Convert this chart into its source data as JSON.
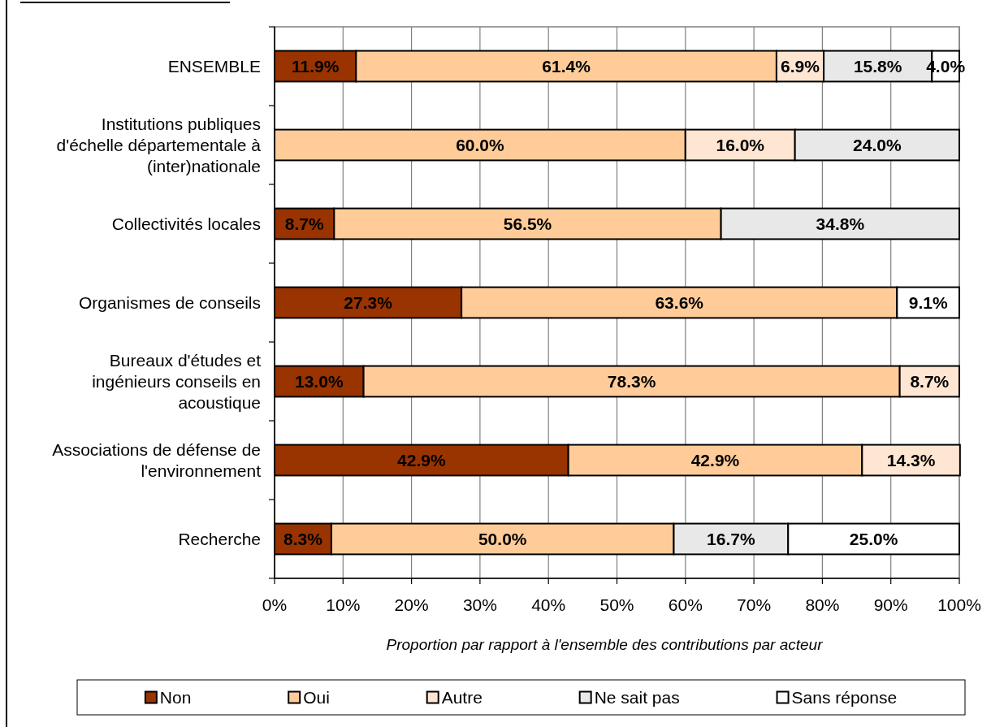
{
  "chart_data": {
    "type": "bar",
    "orientation": "horizontal",
    "stacked": true,
    "categories": [
      "ENSEMBLE",
      "Institutions publiques d'échelle départementale à (inter)nationale",
      "Collectivités locales",
      "Organismes de conseils",
      "Bureaux d'études et ingénieurs conseils en acoustique",
      "Associations de défense de l'environnement",
      "Recherche"
    ],
    "series": [
      {
        "name": "Non",
        "color": "#993300",
        "values": [
          11.9,
          null,
          8.7,
          27.3,
          13.0,
          42.9,
          8.3
        ],
        "value_labels": [
          "11.9%",
          null,
          "8.7%",
          "27.3%",
          "13.0%",
          "42.9%",
          "8.3%"
        ]
      },
      {
        "name": "Oui",
        "color": "#ffcc99",
        "values": [
          61.4,
          60.0,
          56.5,
          63.6,
          78.3,
          42.9,
          50.0
        ],
        "value_labels": [
          "61.4%",
          "60.0%",
          "56.5%",
          "63.6%",
          "78.3%",
          "42.9%",
          "50.0%"
        ]
      },
      {
        "name": "Autre",
        "color": "#fee6d2",
        "values": [
          6.9,
          16.0,
          null,
          null,
          8.7,
          14.3,
          null
        ],
        "value_labels": [
          "6.9%",
          "16.0%",
          null,
          null,
          "8.7%",
          "14.3%",
          null
        ]
      },
      {
        "name": "Ne sait pas",
        "color": "#e8e8e8",
        "values": [
          15.8,
          24.0,
          34.8,
          null,
          null,
          null,
          16.7
        ],
        "value_labels": [
          "15.8%",
          "24.0%",
          "34.8%",
          null,
          null,
          null,
          "16.7%"
        ]
      },
      {
        "name": "Sans réponse",
        "color": "#ffffff",
        "values": [
          4.0,
          null,
          null,
          9.1,
          null,
          null,
          25.0
        ],
        "value_labels": [
          "4.0%",
          null,
          null,
          "9.1%",
          null,
          null,
          "25.0%"
        ]
      }
    ],
    "xlabel": "Proportion par rapport à l'ensemble des contributions par acteur",
    "xlim": [
      0,
      100
    ],
    "xticks": [
      {
        "value": 0,
        "label": "0%"
      },
      {
        "value": 10,
        "label": "10%"
      },
      {
        "value": 20,
        "label": "20%"
      },
      {
        "value": 30,
        "label": "30%"
      },
      {
        "value": 40,
        "label": "40%"
      },
      {
        "value": 50,
        "label": "50%"
      },
      {
        "value": 60,
        "label": "60%"
      },
      {
        "value": 70,
        "label": "70%"
      },
      {
        "value": 80,
        "label": "80%"
      },
      {
        "value": 90,
        "label": "90%"
      },
      {
        "value": 100,
        "label": "100%"
      }
    ],
    "grid": "x",
    "legend": "bottom"
  }
}
